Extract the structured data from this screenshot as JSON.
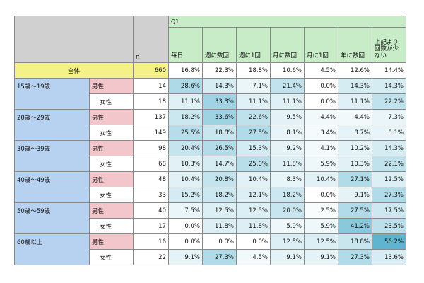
{
  "question_label": "Q1",
  "n_label": "n",
  "options": [
    "毎日",
    "週に数回",
    "週に1回",
    "月に数回",
    "月に1回",
    "年に数回",
    "上記より回数が少ない"
  ],
  "total": {
    "label": "全体",
    "n": "660",
    "values": [
      "16.8%",
      "22.3%",
      "18.8%",
      "10.6%",
      "4.5%",
      "12.6%",
      "14.4%"
    ]
  },
  "groups": [
    {
      "age": "15歳～19歳",
      "rows": [
        {
          "gender": "男性",
          "n": "14",
          "values": [
            "28.6%",
            "14.3%",
            "7.1%",
            "21.4%",
            "0.0%",
            "14.3%",
            "14.3%"
          ]
        },
        {
          "gender": "女性",
          "n": "18",
          "values": [
            "11.1%",
            "33.3%",
            "11.1%",
            "11.1%",
            "0.0%",
            "11.1%",
            "22.2%"
          ]
        }
      ]
    },
    {
      "age": "20歳～29歳",
      "rows": [
        {
          "gender": "男性",
          "n": "137",
          "values": [
            "18.2%",
            "33.6%",
            "22.6%",
            "9.5%",
            "4.4%",
            "4.4%",
            "7.3%"
          ]
        },
        {
          "gender": "女性",
          "n": "149",
          "values": [
            "25.5%",
            "18.8%",
            "27.5%",
            "8.1%",
            "3.4%",
            "8.7%",
            "8.1%"
          ]
        }
      ]
    },
    {
      "age": "30歳～39歳",
      "rows": [
        {
          "gender": "男性",
          "n": "98",
          "values": [
            "20.4%",
            "26.5%",
            "15.3%",
            "9.2%",
            "4.1%",
            "10.2%",
            "14.3%"
          ]
        },
        {
          "gender": "女性",
          "n": "68",
          "values": [
            "10.3%",
            "14.7%",
            "25.0%",
            "11.8%",
            "5.9%",
            "10.3%",
            "22.1%"
          ]
        }
      ]
    },
    {
      "age": "40歳～49歳",
      "rows": [
        {
          "gender": "男性",
          "n": "48",
          "values": [
            "10.4%",
            "20.8%",
            "10.4%",
            "8.3%",
            "10.4%",
            "27.1%",
            "12.5%"
          ]
        },
        {
          "gender": "女性",
          "n": "33",
          "values": [
            "15.2%",
            "18.2%",
            "12.1%",
            "18.2%",
            "0.0%",
            "9.1%",
            "27.3%"
          ]
        }
      ]
    },
    {
      "age": "50歳～59歳",
      "rows": [
        {
          "gender": "男性",
          "n": "40",
          "values": [
            "7.5%",
            "12.5%",
            "12.5%",
            "20.0%",
            "2.5%",
            "27.5%",
            "17.5%"
          ]
        },
        {
          "gender": "女性",
          "n": "17",
          "values": [
            "0.0%",
            "11.8%",
            "11.8%",
            "5.9%",
            "5.9%",
            "41.2%",
            "23.5%"
          ]
        }
      ]
    },
    {
      "age": "60歳以上",
      "rows": [
        {
          "gender": "男性",
          "n": "16",
          "values": [
            "0.0%",
            "0.0%",
            "0.0%",
            "12.5%",
            "12.5%",
            "18.8%",
            "56.2%"
          ]
        },
        {
          "gender": "女性",
          "n": "22",
          "values": [
            "9.1%",
            "27.3%",
            "4.5%",
            "9.1%",
            "9.1%",
            "27.3%",
            "13.6%"
          ]
        }
      ]
    }
  ],
  "colors": {
    "header_gray": "#d0d0d0",
    "header_green": "#c8ecc8",
    "total_yellow": "#f3f188",
    "age_blue": "#b7d2f0",
    "male_pink": "#f3c6cb",
    "heat_light": "#ffffff",
    "heat_dark": "#5fb5cf"
  }
}
